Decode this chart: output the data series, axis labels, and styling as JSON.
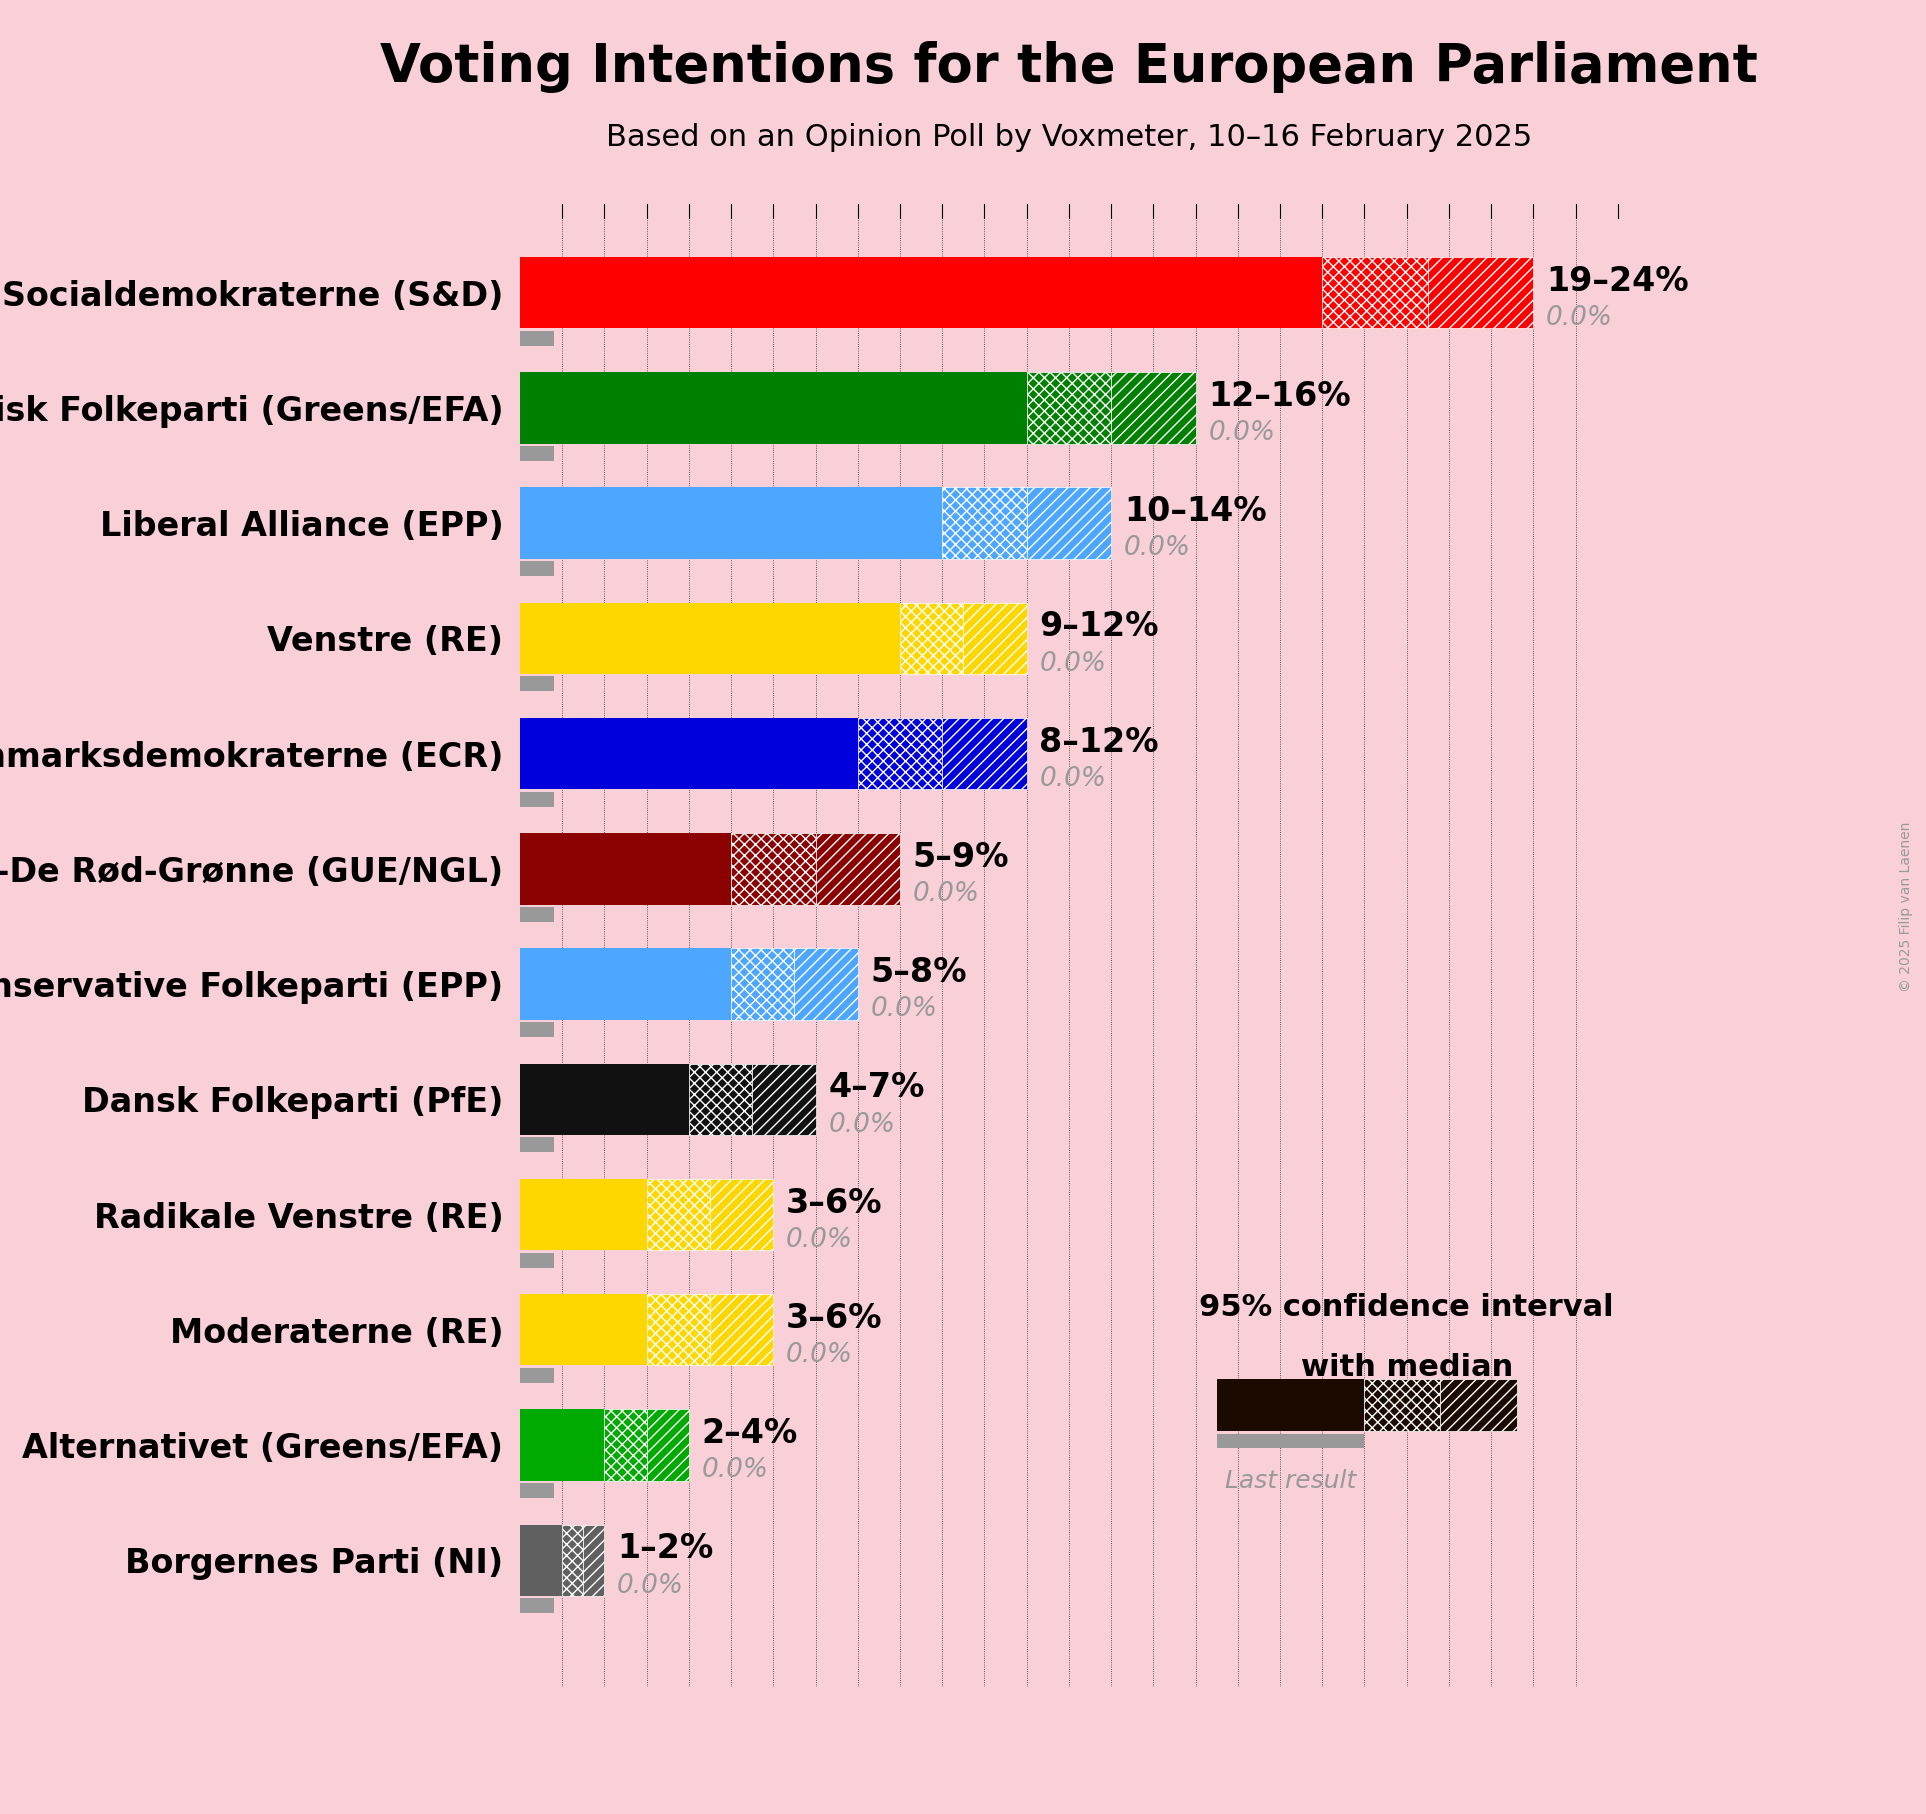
{
  "title": "Voting Intentions for the European Parliament",
  "subtitle": "Based on an Opinion Poll by Voxmeter, 10–16 February 2025",
  "copyright": "© 2025 Filip van Laenen",
  "background_color": "#f9d0d8",
  "parties": [
    {
      "name": "Socialdemokraterne (S&D)",
      "low": 19,
      "high": 24,
      "median": 19,
      "last": 0.0,
      "color": "#FF0000"
    },
    {
      "name": "Socialistisk Folkeparti (Greens/EFA)",
      "low": 12,
      "high": 16,
      "median": 12,
      "last": 0.0,
      "color": "#008000"
    },
    {
      "name": "Liberal Alliance (EPP)",
      "low": 10,
      "high": 14,
      "median": 10,
      "last": 0.0,
      "color": "#4DA6FF"
    },
    {
      "name": "Venstre (RE)",
      "low": 9,
      "high": 12,
      "median": 9,
      "last": 0.0,
      "color": "#FFD700"
    },
    {
      "name": "Danmarksdemokraterne (ECR)",
      "low": 8,
      "high": 12,
      "median": 8,
      "last": 0.0,
      "color": "#0000DD"
    },
    {
      "name": "Enhedslisten–De Rød-Grønne (GUE/NGL)",
      "low": 5,
      "high": 9,
      "median": 5,
      "last": 0.0,
      "color": "#8B0000"
    },
    {
      "name": "Det Konservative Folkeparti (EPP)",
      "low": 5,
      "high": 8,
      "median": 5,
      "last": 0.0,
      "color": "#4DA6FF"
    },
    {
      "name": "Dansk Folkeparti (PfE)",
      "low": 4,
      "high": 7,
      "median": 4,
      "last": 0.0,
      "color": "#111111"
    },
    {
      "name": "Radikale Venstre (RE)",
      "low": 3,
      "high": 6,
      "median": 3,
      "last": 0.0,
      "color": "#FFD700"
    },
    {
      "name": "Moderaterne (RE)",
      "low": 3,
      "high": 6,
      "median": 3,
      "last": 0.0,
      "color": "#FFD700"
    },
    {
      "name": "Alternativet (Greens/EFA)",
      "low": 2,
      "high": 4,
      "median": 2,
      "last": 0.0,
      "color": "#00AA00"
    },
    {
      "name": "Borgernes Parti (NI)",
      "low": 1,
      "high": 2,
      "median": 1,
      "last": 0.0,
      "color": "#606060"
    }
  ],
  "xlim": [
    0,
    26
  ],
  "bar_height": 0.62,
  "last_bar_height": 0.13,
  "label_fontsize": 24,
  "range_fontsize": 24,
  "last_fontsize": 19,
  "title_fontsize": 38,
  "subtitle_fontsize": 22,
  "copyright_fontsize": 10,
  "legend_fontsize": 22
}
